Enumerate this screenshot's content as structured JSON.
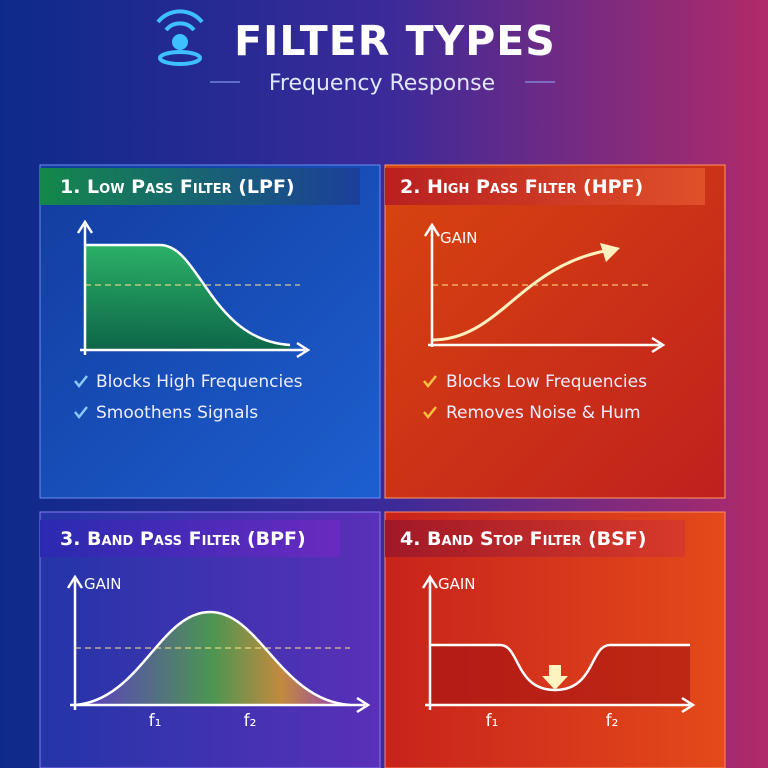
{
  "header": {
    "title": "FILTER TYPES",
    "subtitle": "Frequency Response"
  },
  "panels": [
    {
      "title": "1. Low Pass Filter (LPF)",
      "bullets": [
        "Blocks High Frequencies",
        "Smoothens Signals"
      ]
    },
    {
      "title": "2. High Pass Filter (HPF)",
      "axis_label": "GAIN",
      "bullets": [
        "Blocks Low Frequencies",
        "Removes Noise & Hum"
      ]
    },
    {
      "title": "3. Band Pass Filter (BPF)",
      "axis_label": "GAIN",
      "x_labels": [
        "f₁",
        "f₂"
      ]
    },
    {
      "title": "4. Band Stop Filter (BSF)",
      "axis_label": "GAIN",
      "x_labels": [
        "f₁",
        "f₂"
      ]
    }
  ]
}
